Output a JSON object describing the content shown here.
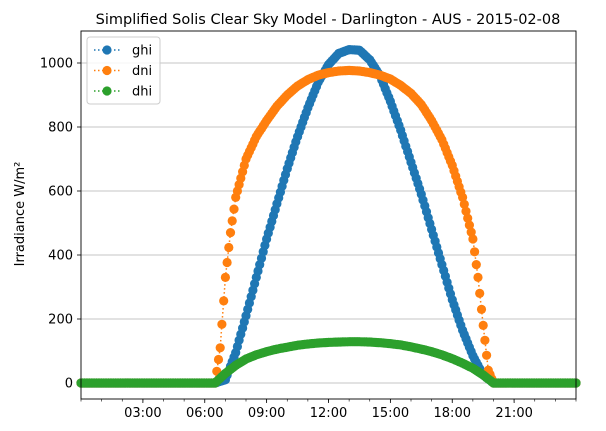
{
  "chart_data": {
    "type": "scatter",
    "title": "Simplified Solis Clear Sky Model - Darlington - AUS - 2015-02-08",
    "ylabel": "Irradiance W/m²",
    "xlabel": "",
    "xlim": [
      "00:00",
      "24:00"
    ],
    "ylim": [
      -50,
      1100
    ],
    "x_ticks": [
      "03:00",
      "06:00",
      "09:00",
      "12:00",
      "15:00",
      "18:00",
      "21:00"
    ],
    "y_ticks": [
      0,
      200,
      400,
      600,
      800,
      1000
    ],
    "grid": "horizontal",
    "legend_position": "upper left",
    "marker": "circle, dotted line",
    "series": [
      {
        "name": "ghi",
        "color": "#1f77b4",
        "x": [
          "00:00",
          "06:00",
          "06:30",
          "07:00",
          "07:30",
          "08:00",
          "08:30",
          "09:00",
          "09:30",
          "10:00",
          "10:30",
          "11:00",
          "11:30",
          "12:00",
          "12:30",
          "13:00",
          "13:30",
          "14:00",
          "14:30",
          "15:00",
          "15:30",
          "16:00",
          "16:30",
          "17:00",
          "17:30",
          "18:00",
          "18:30",
          "19:00",
          "19:30",
          "20:00",
          "20:30",
          "21:00",
          "24:00"
        ],
        "values": [
          0,
          0,
          0,
          10,
          95,
          210,
          330,
          450,
          560,
          670,
          770,
          860,
          940,
          995,
          1030,
          1042,
          1040,
          1010,
          960,
          880,
          790,
          690,
          590,
          480,
          370,
          260,
          165,
          85,
          25,
          0,
          0,
          0,
          0
        ]
      },
      {
        "name": "dni",
        "color": "#ff7f0e",
        "x": [
          "00:00",
          "06:00",
          "06:30",
          "06:45",
          "07:00",
          "07:15",
          "07:30",
          "08:00",
          "08:30",
          "09:00",
          "09:30",
          "10:00",
          "10:30",
          "11:00",
          "11:30",
          "12:00",
          "12:30",
          "13:00",
          "13:30",
          "14:00",
          "14:30",
          "15:00",
          "15:30",
          "16:00",
          "16:30",
          "17:00",
          "17:30",
          "18:00",
          "18:30",
          "19:00",
          "19:15",
          "19:30",
          "19:45",
          "20:00",
          "20:15",
          "20:30",
          "21:00",
          "24:00"
        ],
        "values": [
          0,
          0,
          0,
          110,
          330,
          470,
          580,
          700,
          770,
          820,
          865,
          900,
          928,
          948,
          962,
          970,
          975,
          977,
          975,
          970,
          962,
          950,
          930,
          905,
          870,
          820,
          760,
          680,
          580,
          450,
          330,
          180,
          40,
          0,
          0,
          0,
          0,
          0
        ]
      },
      {
        "name": "dhi",
        "color": "#2ca02c",
        "x": [
          "00:00",
          "06:00",
          "06:30",
          "07:00",
          "07:30",
          "08:00",
          "08:30",
          "09:00",
          "09:30",
          "10:00",
          "10:30",
          "11:00",
          "11:30",
          "12:00",
          "12:30",
          "13:00",
          "13:30",
          "14:00",
          "14:30",
          "15:00",
          "15:30",
          "16:00",
          "16:30",
          "17:00",
          "17:30",
          "18:00",
          "18:30",
          "19:00",
          "19:30",
          "20:00",
          "20:30",
          "21:00",
          "24:00"
        ],
        "values": [
          0,
          0,
          0,
          30,
          55,
          75,
          88,
          98,
          106,
          112,
          118,
          122,
          125,
          127,
          128,
          129,
          129,
          128,
          126,
          123,
          119,
          113,
          106,
          98,
          88,
          76,
          62,
          46,
          25,
          0,
          0,
          0,
          0
        ]
      }
    ]
  }
}
